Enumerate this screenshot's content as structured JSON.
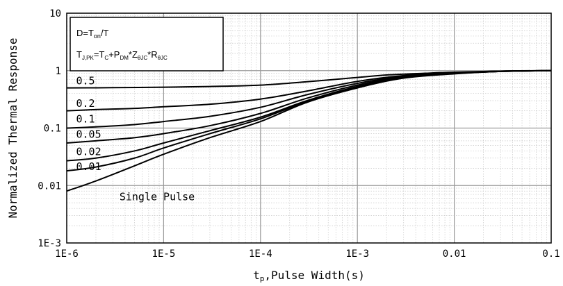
{
  "chart_data": {
    "type": "line",
    "x_scale": "log",
    "y_scale": "log",
    "xlim": [
      1e-06,
      0.1
    ],
    "ylim": [
      0.001,
      10
    ],
    "xlabel": "tp,Pulse Width(s)",
    "xlabel_main": "t",
    "xlabel_sub": "p",
    "xlabel_rest": ",Pulse Width(s)",
    "ylabel": "Normalized Thermal Response",
    "x_ticks": [
      {
        "value": 1e-06,
        "label": "1E-6"
      },
      {
        "value": 1e-05,
        "label": "1E-5"
      },
      {
        "value": 0.0001,
        "label": "1E-4"
      },
      {
        "value": 0.001,
        "label": "1E-3"
      },
      {
        "value": 0.01,
        "label": "0.01"
      },
      {
        "value": 0.1,
        "label": "0.1"
      }
    ],
    "y_ticks": [
      {
        "value": 0.001,
        "label": "1E-3"
      },
      {
        "value": 0.01,
        "label": "0.01"
      },
      {
        "value": 0.1,
        "label": "0.1"
      },
      {
        "value": 1,
        "label": "1"
      },
      {
        "value": 10,
        "label": "10"
      }
    ],
    "grid": true,
    "legend": {
      "placement": "top-left",
      "line1": "D=Ton/T",
      "line2": "TJ,PK=TC+PDM*ZθJC*RθJC"
    },
    "series": [
      {
        "name": "0.5",
        "label_x": 1.25e-06,
        "label_y": 0.58,
        "x": [
          1e-06,
          3e-06,
          1e-05,
          3e-05,
          0.0001,
          0.0003,
          0.001,
          0.002,
          0.005,
          0.01,
          0.03,
          0.1
        ],
        "y": [
          0.5,
          0.505,
          0.515,
          0.53,
          0.56,
          0.64,
          0.76,
          0.84,
          0.9,
          0.94,
          0.98,
          1.0
        ]
      },
      {
        "name": "0.2",
        "label_x": 1.25e-06,
        "label_y": 0.235,
        "x": [
          1e-06,
          2e-06,
          5e-06,
          1e-05,
          3e-05,
          0.0001,
          0.0003,
          0.001,
          0.003,
          0.01,
          0.03,
          0.1
        ],
        "y": [
          0.2,
          0.21,
          0.22,
          0.235,
          0.26,
          0.32,
          0.44,
          0.65,
          0.82,
          0.92,
          0.98,
          1.0
        ]
      },
      {
        "name": "0.1",
        "label_x": 1.25e-06,
        "label_y": 0.125,
        "x": [
          1e-06,
          2e-06,
          5e-06,
          1e-05,
          3e-05,
          0.0001,
          0.0003,
          0.001,
          0.003,
          0.01,
          0.03,
          0.1
        ],
        "y": [
          0.1,
          0.105,
          0.115,
          0.13,
          0.16,
          0.23,
          0.38,
          0.6,
          0.8,
          0.91,
          0.98,
          1.0
        ]
      },
      {
        "name": "0.05",
        "label_x": 1.25e-06,
        "label_y": 0.068,
        "x": [
          1e-06,
          2e-06,
          5e-06,
          1e-05,
          3e-05,
          0.0001,
          0.0003,
          0.001,
          0.003,
          0.01,
          0.03,
          0.1
        ],
        "y": [
          0.055,
          0.06,
          0.068,
          0.08,
          0.11,
          0.18,
          0.33,
          0.56,
          0.78,
          0.9,
          0.97,
          1.0
        ]
      },
      {
        "name": "0.02",
        "label_x": 1.25e-06,
        "label_y": 0.034,
        "x": [
          1e-06,
          2e-06,
          5e-06,
          1e-05,
          3e-05,
          0.0001,
          0.0003,
          0.001,
          0.003,
          0.01,
          0.03,
          0.1
        ],
        "y": [
          0.027,
          0.03,
          0.04,
          0.055,
          0.09,
          0.155,
          0.3,
          0.53,
          0.76,
          0.89,
          0.97,
          1.0
        ]
      },
      {
        "name": "0.01",
        "label_x": 1.25e-06,
        "label_y": 0.0185,
        "x": [
          1e-06,
          2e-06,
          5e-06,
          1e-05,
          3e-05,
          0.0001,
          0.0003,
          0.001,
          0.003,
          0.01,
          0.03,
          0.1
        ],
        "y": [
          0.018,
          0.021,
          0.03,
          0.045,
          0.08,
          0.145,
          0.29,
          0.52,
          0.75,
          0.89,
          0.97,
          1.0
        ]
      },
      {
        "name": "Single Pulse",
        "label_x": 3.5e-06,
        "label_y": 0.0055,
        "x": [
          1e-06,
          2e-06,
          5e-06,
          1e-05,
          3e-05,
          0.0001,
          0.0003,
          0.001,
          0.003,
          0.01,
          0.03,
          0.1
        ],
        "y": [
          0.008,
          0.012,
          0.022,
          0.035,
          0.068,
          0.13,
          0.28,
          0.5,
          0.74,
          0.88,
          0.97,
          1.0
        ]
      }
    ]
  }
}
